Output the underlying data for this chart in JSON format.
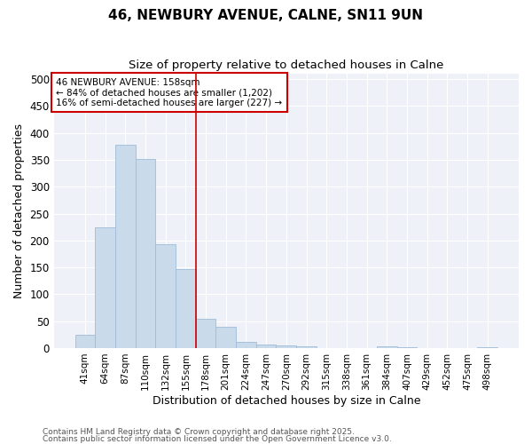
{
  "title1": "46, NEWBURY AVENUE, CALNE, SN11 9UN",
  "title2": "Size of property relative to detached houses in Calne",
  "xlabel": "Distribution of detached houses by size in Calne",
  "ylabel": "Number of detached properties",
  "categories": [
    "41sqm",
    "64sqm",
    "87sqm",
    "110sqm",
    "132sqm",
    "155sqm",
    "178sqm",
    "201sqm",
    "224sqm",
    "247sqm",
    "270sqm",
    "292sqm",
    "315sqm",
    "338sqm",
    "361sqm",
    "384sqm",
    "407sqm",
    "429sqm",
    "452sqm",
    "475sqm",
    "498sqm"
  ],
  "values": [
    25,
    225,
    378,
    352,
    193,
    147,
    55,
    40,
    11,
    7,
    5,
    3,
    0,
    0,
    0,
    3,
    2,
    0,
    0,
    0,
    2
  ],
  "bar_color": "#c9daea",
  "bar_edge_color": "#a0bcd8",
  "vline_x": 5.5,
  "vline_color": "#cc0000",
  "annotation_title": "46 NEWBURY AVENUE: 158sqm",
  "annotation_line1": "← 84% of detached houses are smaller (1,202)",
  "annotation_line2": "16% of semi-detached houses are larger (227) →",
  "annotation_box_color": "#cc0000",
  "ylim": [
    0,
    510
  ],
  "yticks": [
    0,
    50,
    100,
    150,
    200,
    250,
    300,
    350,
    400,
    450,
    500
  ],
  "bg_color": "#eef2f8",
  "grid_color": "#ffffff",
  "footer1": "Contains HM Land Registry data © Crown copyright and database right 2025.",
  "footer2": "Contains public sector information licensed under the Open Government Licence v3.0."
}
